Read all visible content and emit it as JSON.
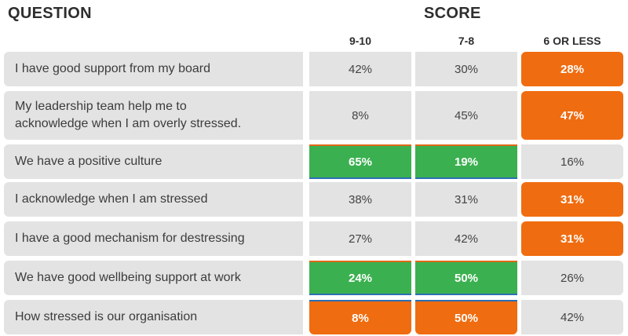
{
  "header": {
    "question_label": "QUESTION",
    "score_label": "SCORE",
    "columns": [
      "9-10",
      "7-8",
      "6 OR LESS"
    ]
  },
  "colors": {
    "highlight_orange": "#f06c10",
    "highlight_green": "#3bb050",
    "cell_grey": "#e3e3e3"
  },
  "rows": [
    {
      "question_lines": [
        "I have good support from my board"
      ],
      "scores": [
        "42%",
        "30%",
        "28%"
      ],
      "styles": [
        "plain",
        "plain",
        "orange"
      ]
    },
    {
      "question_lines": [
        "My leadership team help me to",
        "acknowledge when I am overly stressed."
      ],
      "scores": [
        "8%",
        "45%",
        "47%"
      ],
      "styles": [
        "plain",
        "plain",
        "orange"
      ]
    },
    {
      "question_lines": [
        "We have a positive culture"
      ],
      "scores": [
        "65%",
        "19%",
        "16%"
      ],
      "styles": [
        "green",
        "green",
        "plain"
      ]
    },
    {
      "question_lines": [
        "I acknowledge when I am stressed"
      ],
      "scores": [
        "38%",
        "31%",
        "31%"
      ],
      "styles": [
        "plain",
        "plain",
        "orange"
      ]
    },
    {
      "question_lines": [
        "I have a good mechanism for destressing"
      ],
      "scores": [
        "27%",
        "42%",
        "31%"
      ],
      "styles": [
        "plain",
        "plain",
        "orange"
      ]
    },
    {
      "question_lines": [
        "We have good wellbeing support at work"
      ],
      "scores": [
        "24%",
        "50%",
        "26%"
      ],
      "styles": [
        "green",
        "green",
        "plain"
      ]
    },
    {
      "question_lines": [
        "How stressed is our organisation"
      ],
      "scores": [
        "8%",
        "50%",
        "42%"
      ],
      "styles": [
        "orange",
        "orange",
        "plain"
      ]
    }
  ]
}
